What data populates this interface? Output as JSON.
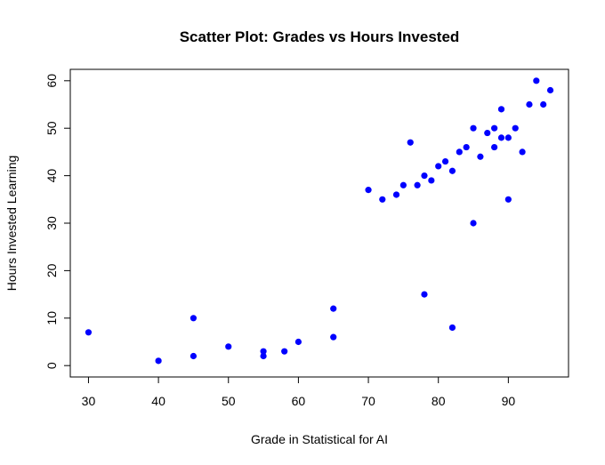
{
  "chart_data": {
    "type": "scatter",
    "title": "Scatter Plot: Grades vs Hours Invested",
    "xlabel": "Grade in Statistical for AI",
    "ylabel": "Hours Invested Learning",
    "xlim": [
      27.4,
      98.6
    ],
    "ylim": [
      -2.4,
      62.4
    ],
    "xticks": [
      30,
      40,
      50,
      60,
      70,
      80,
      90
    ],
    "yticks": [
      0,
      10,
      20,
      30,
      40,
      50,
      60
    ],
    "grid": false,
    "point_color": "#0000ff",
    "series": [
      {
        "x": [
          30,
          40,
          45,
          45,
          50,
          55,
          55,
          58,
          60,
          65,
          65,
          70,
          72,
          74,
          75,
          76,
          77,
          78,
          78,
          79,
          80,
          81,
          82,
          82,
          83,
          84,
          85,
          85,
          86,
          87,
          88,
          88,
          89,
          89,
          90,
          90,
          91,
          92,
          93,
          94,
          95,
          96
        ],
        "y": [
          7,
          1,
          10,
          2,
          4,
          3,
          2,
          3,
          5,
          12,
          6,
          37,
          35,
          36,
          38,
          47,
          38,
          40,
          15,
          39,
          42,
          43,
          41,
          8,
          45,
          46,
          50,
          30,
          44,
          49,
          50,
          46,
          54,
          48,
          48,
          35,
          50,
          45,
          55,
          60,
          55,
          58
        ]
      }
    ]
  }
}
